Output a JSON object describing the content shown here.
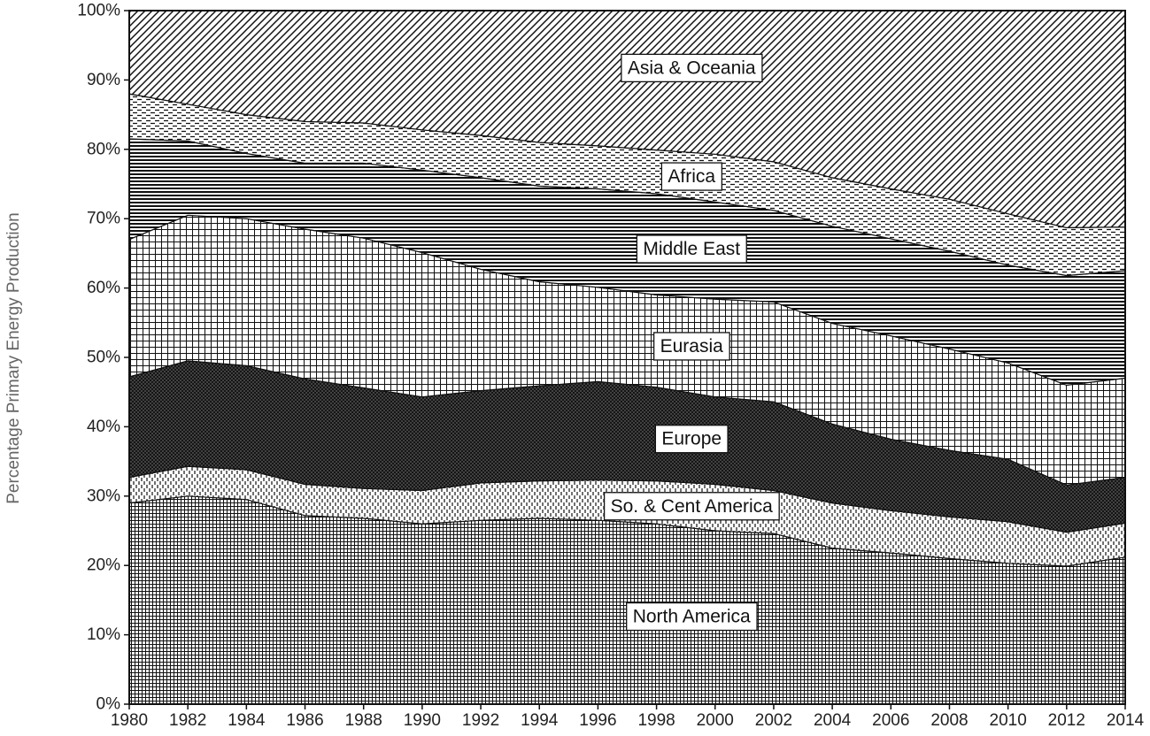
{
  "chart_data": {
    "type": "area",
    "stacked": true,
    "percent": true,
    "xlabel": "",
    "ylabel": "Percentage Primary Energy Production",
    "x": [
      1980,
      1982,
      1984,
      1986,
      1988,
      1990,
      1992,
      1994,
      1996,
      1998,
      2000,
      2002,
      2004,
      2006,
      2008,
      2010,
      2012,
      2014
    ],
    "xticks": [
      "1980",
      "1982",
      "1984",
      "1986",
      "1988",
      "1990",
      "1992",
      "1994",
      "1996",
      "1998",
      "2000",
      "2002",
      "2004",
      "2006",
      "2008",
      "2010",
      "2012",
      "2014"
    ],
    "yticks": [
      "0%",
      "10%",
      "20%",
      "30%",
      "40%",
      "50%",
      "60%",
      "70%",
      "80%",
      "90%",
      "100%"
    ],
    "ylim": [
      0,
      100
    ],
    "grid": false,
    "series": [
      {
        "name": "North America",
        "values": [
          29.0,
          30.0,
          29.5,
          27.2,
          26.8,
          26.0,
          26.5,
          26.8,
          26.5,
          26.0,
          25.0,
          24.6,
          22.5,
          21.8,
          21.0,
          20.3,
          19.9,
          21.2
        ]
      },
      {
        "name": "So. & Cent America",
        "values": [
          3.7,
          4.3,
          4.3,
          4.5,
          4.3,
          4.8,
          5.4,
          5.4,
          5.8,
          6.2,
          6.7,
          6.2,
          6.5,
          6.1,
          6.0,
          6.0,
          4.9,
          4.9
        ]
      },
      {
        "name": "Europe",
        "values": [
          14.5,
          15.2,
          15.0,
          15.2,
          14.5,
          13.5,
          13.3,
          13.7,
          14.2,
          13.5,
          12.6,
          12.8,
          11.4,
          10.3,
          9.6,
          9.0,
          6.8,
          6.6
        ]
      },
      {
        "name": "Eurasia",
        "values": [
          19.8,
          21.0,
          21.2,
          21.6,
          21.6,
          20.8,
          17.5,
          15.0,
          13.6,
          13.3,
          14.1,
          14.4,
          14.5,
          14.9,
          14.6,
          13.9,
          14.4,
          14.3
        ]
      },
      {
        "name": "Middle East",
        "values": [
          14.5,
          10.7,
          9.4,
          9.5,
          10.8,
          11.9,
          13.2,
          13.8,
          14.2,
          14.6,
          14.0,
          13.2,
          14.0,
          14.0,
          14.1,
          14.1,
          15.8,
          15.5
        ]
      },
      {
        "name": "Africa",
        "values": [
          6.5,
          5.3,
          5.6,
          6.0,
          5.8,
          5.8,
          6.1,
          6.3,
          6.2,
          6.3,
          6.9,
          7.0,
          7.0,
          7.2,
          7.5,
          7.4,
          6.9,
          6.3
        ]
      },
      {
        "name": "Asia & Oceania",
        "values": [
          12.0,
          13.5,
          15.0,
          16.0,
          16.2,
          17.2,
          18.0,
          19.0,
          19.5,
          20.1,
          20.7,
          21.8,
          24.1,
          25.7,
          27.2,
          29.3,
          31.3,
          31.2
        ]
      }
    ]
  }
}
